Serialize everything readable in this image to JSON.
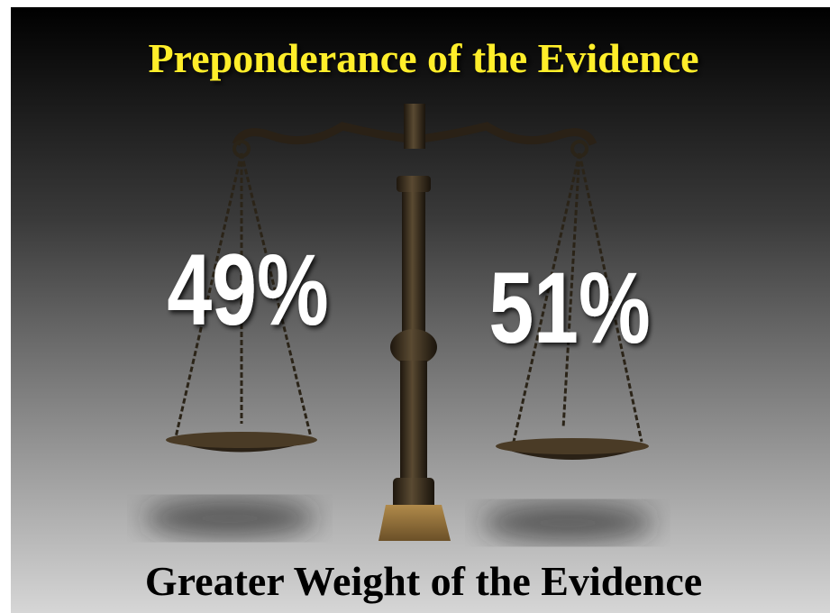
{
  "slide": {
    "title": "Preponderance of the Evidence",
    "left_label": "49%",
    "right_label": "51%",
    "subtitle": "Greater Weight of the Evidence"
  }
}
